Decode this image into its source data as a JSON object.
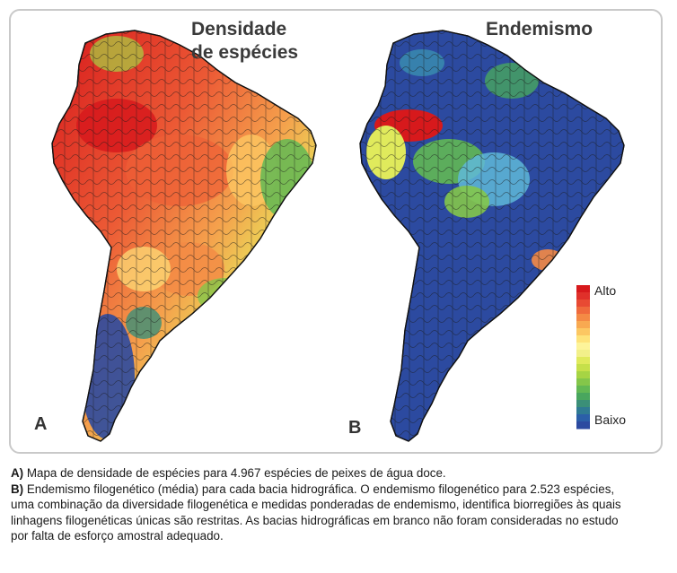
{
  "panel_a": {
    "title_line1": "Densidade",
    "title_line2": "de espécies",
    "letter": "A"
  },
  "panel_b": {
    "title": "Endemismo",
    "letter": "B"
  },
  "legend": {
    "high_label": "Alto",
    "low_label": "Baixo",
    "colors": [
      "#d7191c",
      "#e0302a",
      "#e84a33",
      "#ef6a3c",
      "#f48a45",
      "#f8a951",
      "#fcc762",
      "#fee37a",
      "#fdf49a",
      "#f2f08a",
      "#e0ea5c",
      "#c6e04a",
      "#a6d444",
      "#84c64a",
      "#62b854",
      "#49a65e",
      "#3b8f78",
      "#2f7a93",
      "#2b5fa8",
      "#2c4aa0"
    ]
  },
  "caption": {
    "a_label": "A)",
    "a_text": " Mapa de densidade de espécies para 4.967 espécies de peixes de água doce.",
    "b_label": "B)",
    "b_line1": " Endemismo filogenético (média) para cada bacia hidrográfica. O endemismo filogenético para 2.523 espécies,",
    "b_line2": "uma combinação da diversidade filogenética e medidas ponderadas de endemismo, identifica biorregiões às quais",
    "b_line3": "linhagens filogenéticas únicas são restritas. As bacias hidrográficas em branco não foram consideradas no estudo",
    "b_line4": "por falta de esforço amostral adequado."
  }
}
